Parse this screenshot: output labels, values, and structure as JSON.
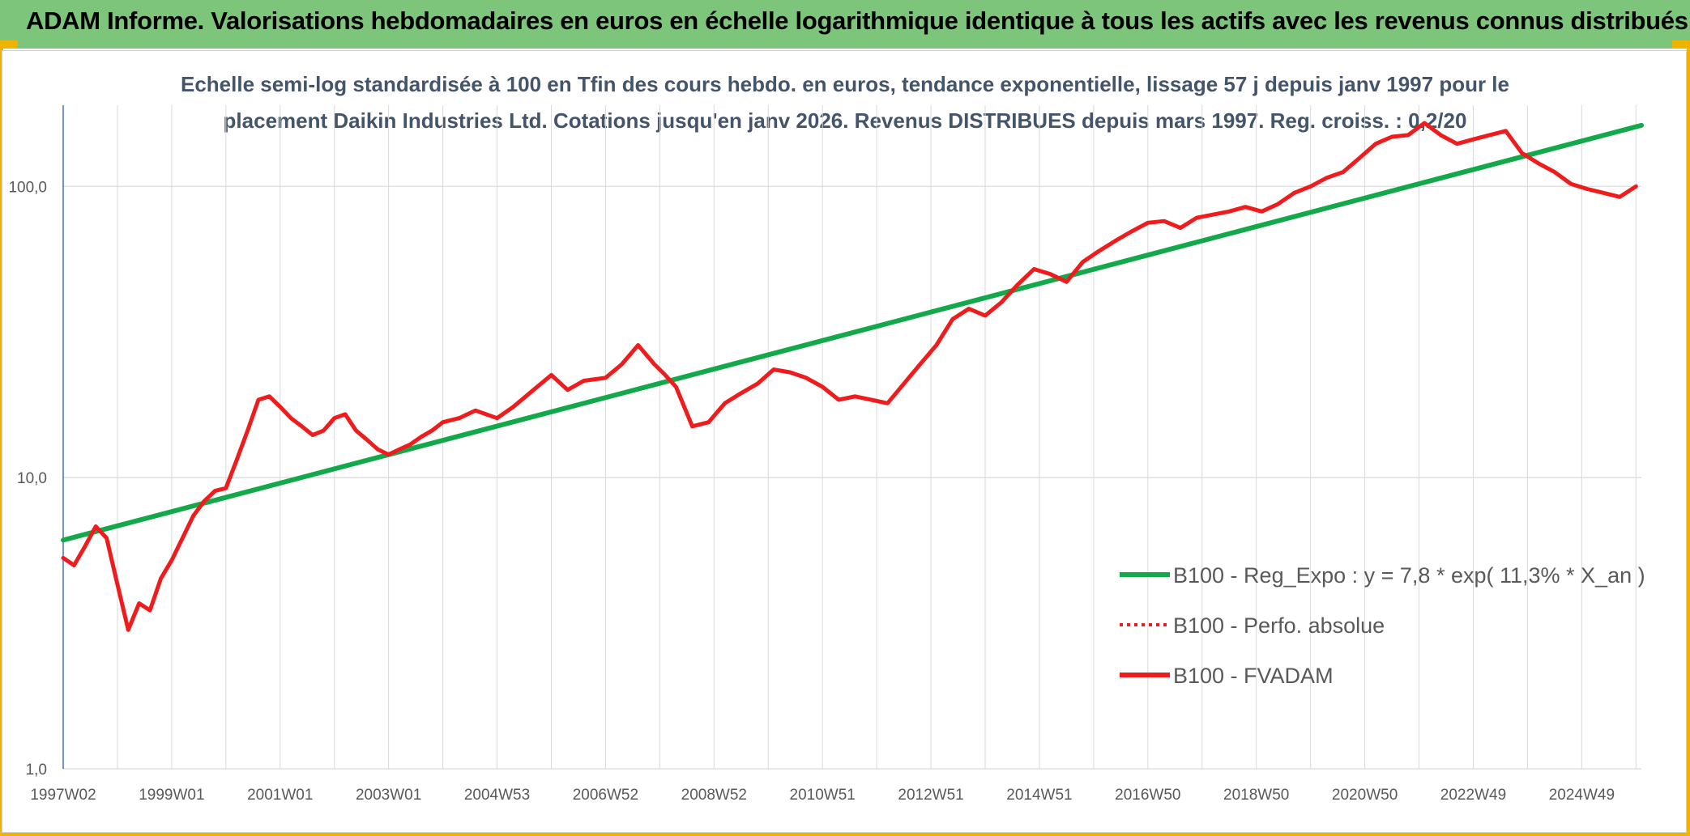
{
  "header": {
    "title": "ADAM Informe. Valorisations hebdomadaires en euros en échelle logarithmique identique à tous les actifs avec les revenus connus distribués"
  },
  "colors": {
    "header_bg": "#7cc57a",
    "accent": "#f0b400",
    "trend": "#13a84a",
    "price": "#ee1c1c",
    "grid": "#d9d9d9",
    "axis": "#4472c4"
  },
  "chart_data": {
    "type": "line",
    "title_lines": [
      "Echelle semi-log standardisée à 100 en Tfin des cours hebdo. en euros, tendance exponentielle, lissage 57 j depuis janv 1997 pour le",
      "placement Daikin Industries Ltd. Cotations jusqu'en janv 2026. Revenus DISTRIBUES depuis mars 1997. Reg. croiss. : 0,2/20"
    ],
    "y_scale": "log",
    "ylim": [
      1,
      190
    ],
    "y_ticks": [
      {
        "value": 1,
        "label": "1,0"
      },
      {
        "value": 10,
        "label": "10,0"
      },
      {
        "value": 100,
        "label": "100,0"
      }
    ],
    "xlim": [
      1997.0,
      2026.1
    ],
    "x_tick_labels": [
      {
        "x": 1997.0,
        "label": "1997W02"
      },
      {
        "x": 1999.0,
        "label": "1999W01"
      },
      {
        "x": 2001.0,
        "label": "2001W01"
      },
      {
        "x": 2003.0,
        "label": "2003W01"
      },
      {
        "x": 2005.0,
        "label": "2004W53"
      },
      {
        "x": 2007.0,
        "label": "2006W52"
      },
      {
        "x": 2009.0,
        "label": "2008W52"
      },
      {
        "x": 2011.0,
        "label": "2010W51"
      },
      {
        "x": 2013.0,
        "label": "2012W51"
      },
      {
        "x": 2015.0,
        "label": "2014W51"
      },
      {
        "x": 2017.0,
        "label": "2016W50"
      },
      {
        "x": 2019.0,
        "label": "2018W50"
      },
      {
        "x": 2021.0,
        "label": "2020W50"
      },
      {
        "x": 2023.0,
        "label": "2022W49"
      },
      {
        "x": 2025.0,
        "label": "2024W49"
      }
    ],
    "legend": [
      {
        "label": "B100 - Reg_Expo : y = 7,8 * exp( 11,3% *  X_an )",
        "style": "solid",
        "color": "#13a84a"
      },
      {
        "label": "B100 - Perfo. absolue",
        "style": "dotted",
        "color": "#ee1c1c"
      },
      {
        "label": "B100 - FVADAM",
        "style": "solid",
        "color": "#ee1c1c"
      }
    ],
    "series": [
      {
        "name": "B100 - Reg_Expo",
        "color": "#13a84a",
        "x": [
          1997.0,
          2026.1
        ],
        "values": [
          6.1,
          162
        ]
      },
      {
        "name": "B100 - FVADAM",
        "color": "#ee1c1c",
        "x": [
          1997.0,
          1997.2,
          1997.4,
          1997.6,
          1997.8,
          1998.0,
          1998.2,
          1998.4,
          1998.6,
          1998.8,
          1999.0,
          1999.2,
          1999.4,
          1999.6,
          1999.8,
          2000.0,
          2000.2,
          2000.4,
          2000.6,
          2000.8,
          2001.0,
          2001.2,
          2001.4,
          2001.6,
          2001.8,
          2002.0,
          2002.2,
          2002.4,
          2002.6,
          2002.8,
          2003.0,
          2003.2,
          2003.4,
          2003.6,
          2003.8,
          2004.0,
          2004.3,
          2004.6,
          2005.0,
          2005.3,
          2005.6,
          2006.0,
          2006.3,
          2006.6,
          2007.0,
          2007.3,
          2007.6,
          2007.9,
          2008.1,
          2008.3,
          2008.6,
          2008.9,
          2009.2,
          2009.5,
          2009.8,
          2010.1,
          2010.4,
          2010.7,
          2011.0,
          2011.3,
          2011.6,
          2011.9,
          2012.2,
          2012.5,
          2012.8,
          2013.1,
          2013.4,
          2013.7,
          2014.0,
          2014.3,
          2014.6,
          2014.9,
          2015.2,
          2015.5,
          2015.8,
          2016.1,
          2016.4,
          2016.7,
          2017.0,
          2017.3,
          2017.6,
          2017.9,
          2018.2,
          2018.5,
          2018.8,
          2019.1,
          2019.4,
          2019.7,
          2020.0,
          2020.3,
          2020.6,
          2020.9,
          2021.2,
          2021.5,
          2021.8,
          2022.1,
          2022.4,
          2022.7,
          2023.0,
          2023.3,
          2023.6,
          2023.9,
          2024.2,
          2024.5,
          2024.8,
          2025.1,
          2025.4,
          2025.7,
          2026.0
        ],
        "values": [
          5.3,
          5.0,
          5.8,
          6.8,
          6.2,
          4.3,
          3.0,
          3.7,
          3.5,
          4.5,
          5.2,
          6.2,
          7.4,
          8.3,
          9.0,
          9.2,
          11.5,
          14.5,
          18.5,
          19.0,
          17.5,
          16.0,
          15.0,
          14.0,
          14.5,
          16.0,
          16.5,
          14.5,
          13.5,
          12.5,
          12.0,
          12.5,
          13.0,
          13.8,
          14.5,
          15.5,
          16.0,
          17.0,
          16.0,
          17.5,
          19.5,
          22.5,
          20.0,
          21.5,
          22.0,
          24.5,
          28.5,
          24.5,
          22.5,
          20.5,
          15.0,
          15.5,
          18.0,
          19.5,
          21.0,
          23.5,
          23.0,
          22.0,
          20.5,
          18.5,
          19.0,
          18.5,
          18.0,
          21.0,
          24.5,
          28.5,
          35.0,
          38.0,
          36.0,
          40.0,
          46.0,
          52.0,
          50.0,
          47.0,
          55.0,
          60.0,
          65.0,
          70.0,
          75.0,
          76.0,
          72.0,
          78.0,
          80.0,
          82.0,
          85.0,
          82.0,
          87.0,
          95.0,
          100.0,
          107.0,
          112.0,
          125.0,
          140.0,
          148.0,
          150.0,
          165.0,
          150.0,
          140.0,
          145.0,
          150.0,
          155.0,
          130.0,
          120.0,
          112.0,
          102.0,
          98.0,
          95.0,
          92.0,
          100.0
        ]
      }
    ]
  }
}
